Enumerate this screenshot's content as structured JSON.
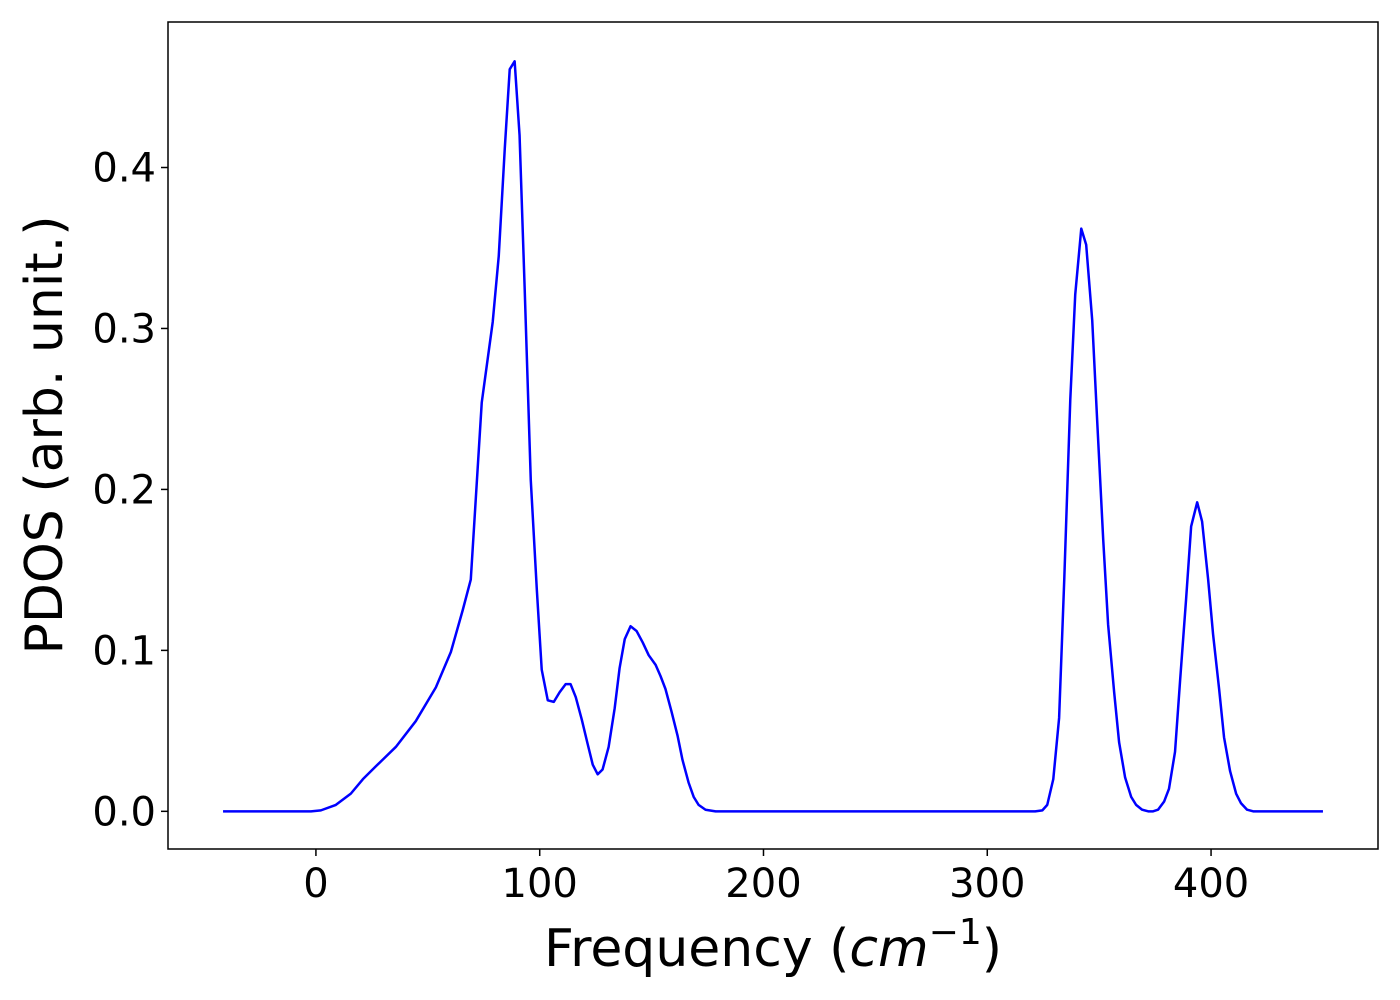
{
  "chart_data": {
    "type": "line",
    "xlabel": [
      "Frequency (",
      "cm",
      "−1",
      ")"
    ],
    "ylabel": "PDOS (arb. unit.)",
    "x": [
      -41.5,
      -2.2,
      2.2,
      8.9,
      15.6,
      21,
      26.8,
      35.7,
      44.6,
      53.6,
      60.3,
      65.6,
      69.2,
      74.1,
      79,
      81.7,
      84.4,
      86.6,
      88.8,
      91,
      93.3,
      96,
      98.7,
      100.9,
      103.6,
      106.3,
      108.9,
      111.6,
      113.8,
      116.1,
      118.8,
      121.4,
      123.7,
      125.9,
      128.1,
      130.8,
      133.5,
      135.7,
      138,
      140.6,
      143.3,
      146,
      148.7,
      151.8,
      154,
      156.2,
      158.9,
      161.6,
      163.8,
      166.5,
      168.8,
      171,
      174.1,
      178.6,
      321.4,
      324.6,
      326.8,
      329.5,
      332.1,
      334.4,
      337.1,
      339.3,
      342,
      344.2,
      346.9,
      349.1,
      351.8,
      354,
      356.7,
      358.9,
      361.6,
      364.3,
      366.5,
      369.2,
      371.9,
      374.1,
      376.3,
      379,
      381.2,
      383.9,
      386.2,
      388.8,
      391.1,
      393.8,
      396,
      398.7,
      400.9,
      403.6,
      405.8,
      408.5,
      411.2,
      413.4,
      416.1,
      418.8,
      450
    ],
    "values": [
      0,
      0,
      0.0006,
      0.004,
      0.011,
      0.02,
      0.028,
      0.04,
      0.056,
      0.077,
      0.099,
      0.125,
      0.144,
      0.254,
      0.304,
      0.345,
      0.412,
      0.461,
      0.466,
      0.42,
      0.324,
      0.206,
      0.138,
      0.088,
      0.069,
      0.068,
      0.074,
      0.079,
      0.079,
      0.071,
      0.057,
      0.042,
      0.029,
      0.023,
      0.026,
      0.04,
      0.064,
      0.089,
      0.107,
      0.115,
      0.112,
      0.105,
      0.097,
      0.091,
      0.084,
      0.076,
      0.062,
      0.047,
      0.032,
      0.018,
      0.009,
      0.004,
      0.001,
      0,
      0,
      0.0006,
      0.004,
      0.02,
      0.058,
      0.144,
      0.256,
      0.321,
      0.362,
      0.352,
      0.305,
      0.243,
      0.169,
      0.116,
      0.074,
      0.043,
      0.021,
      0.009,
      0.004,
      0.001,
      0,
      0,
      0.001,
      0.006,
      0.014,
      0.037,
      0.082,
      0.131,
      0.177,
      0.192,
      0.18,
      0.144,
      0.11,
      0.076,
      0.046,
      0.025,
      0.011,
      0.005,
      0.001,
      0,
      0
    ],
    "color": "#0000ff",
    "xlim": [
      -66.1,
      474.6
    ],
    "xticks": [
      0,
      100,
      200,
      300,
      400
    ],
    "ylim": [
      -0.0234,
      0.4904
    ],
    "yticks": [
      {
        "value": 0,
        "label": "0.0"
      },
      0.1,
      0.2,
      0.3,
      0.4
    ]
  }
}
